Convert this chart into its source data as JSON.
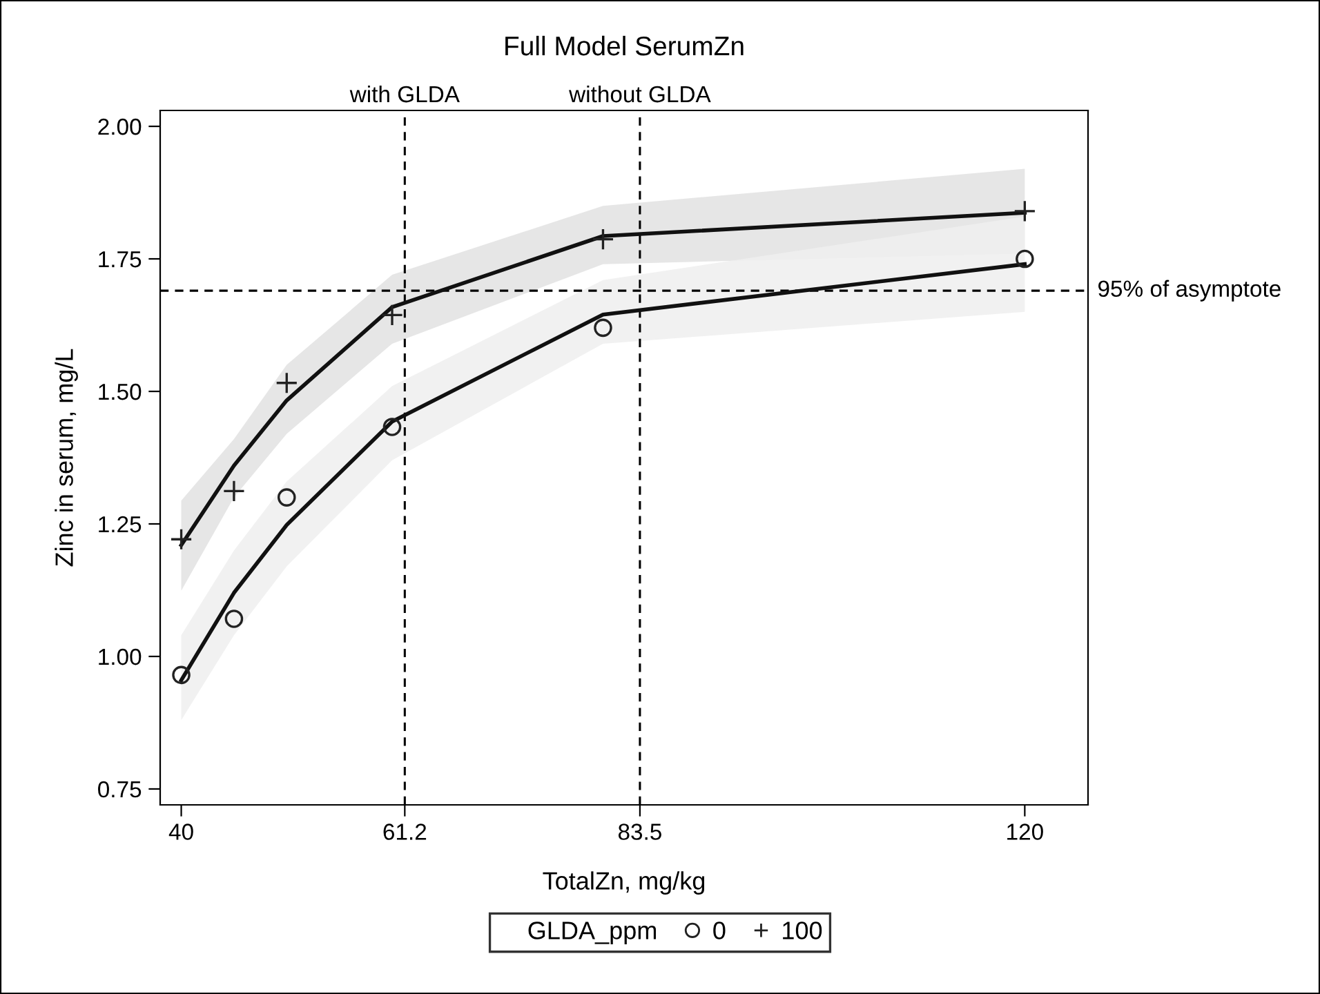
{
  "chart_data": {
    "type": "scatter",
    "title": "Full Model SerumZn",
    "xlabel": "TotalZn, mg/kg",
    "ylabel": "Zinc in serum, mg/L",
    "legend_title": "GLDA_ppm",
    "xlim": [
      38,
      126
    ],
    "ylim": [
      0.72,
      2.03
    ],
    "xticks": [
      40,
      61.2,
      83.5,
      120
    ],
    "yticks": [
      {
        "value": 0.75,
        "label": "0.75"
      },
      {
        "value": 1.0,
        "label": "1.00"
      },
      {
        "value": 1.25,
        "label": "1.25"
      },
      {
        "value": 1.5,
        "label": "1.50"
      },
      {
        "value": 1.75,
        "label": "1.75"
      },
      {
        "value": 2.0,
        "label": "2.00"
      }
    ],
    "grid": false,
    "legend": "bottom",
    "series": [
      {
        "type": "line",
        "color": "#111111",
        "x": [
          40,
          45,
          50,
          60,
          80,
          120
        ],
        "values": [
          1.21,
          1.36,
          1.483,
          1.659,
          1.793,
          1.837
        ],
        "lower": [
          1.124,
          1.3,
          1.42,
          1.59,
          1.74,
          1.76
        ],
        "upper": [
          1.294,
          1.41,
          1.55,
          1.72,
          1.85,
          1.92
        ]
      },
      {
        "type": "line",
        "color": "#111111",
        "x": [
          40,
          45,
          50,
          60,
          80,
          120
        ],
        "values": [
          0.955,
          1.12,
          1.248,
          1.443,
          1.645,
          1.74
        ],
        "lower": [
          0.88,
          1.04,
          1.17,
          1.37,
          1.59,
          1.65
        ],
        "upper": [
          1.04,
          1.2,
          1.33,
          1.51,
          1.71,
          1.83
        ]
      },
      {
        "name": "0",
        "color": "#222222",
        "marker": "circle",
        "x": [
          40,
          45,
          50,
          60,
          80,
          120
        ],
        "values": [
          0.965,
          1.071,
          1.3,
          1.433,
          1.62,
          1.75
        ]
      },
      {
        "name": "100",
        "color": "#222222",
        "marker": "cross",
        "x": [
          40,
          45,
          50,
          60,
          80,
          120
        ],
        "values": [
          1.221,
          1.312,
          1.516,
          1.644,
          1.787,
          1.84
        ]
      }
    ],
    "ref_lines": [
      {
        "axis": "x",
        "value": 61.2,
        "label": "with GLDA",
        "line_style": "dashed",
        "color": "#000000"
      },
      {
        "axis": "x",
        "value": 83.5,
        "label": "without GLDA",
        "line_style": "dashed",
        "color": "#000000"
      },
      {
        "axis": "y",
        "value": 1.69,
        "label": "95% of asymptote",
        "line_style": "dashed",
        "color": "#000000"
      }
    ]
  }
}
